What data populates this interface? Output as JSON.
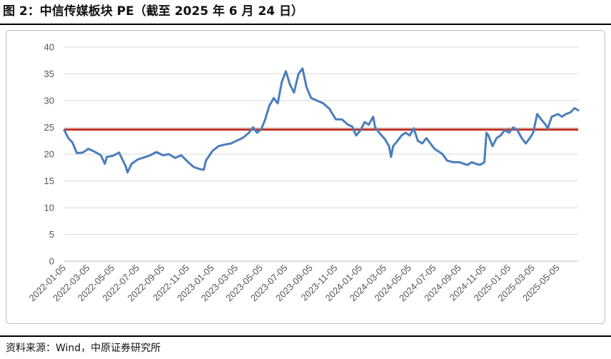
{
  "title": "图 2：中信传媒板块 PE（截至 2025 年 6 月 24 日）",
  "source": "资料来源：Wind，中原证券研究所",
  "colors": {
    "series": "#4a7ebb",
    "reference": "#c0392b",
    "grid": "#d9d9d9"
  },
  "chart_data": {
    "type": "line",
    "title": "",
    "xlabel": "",
    "ylabel": "",
    "ylim": [
      0,
      40
    ],
    "yticks": [
      0,
      5,
      10,
      15,
      20,
      25,
      30,
      35,
      40
    ],
    "xlim": [
      "2022-01-05",
      "2025-06-24"
    ],
    "xticks": [
      "2022-01-05",
      "2022-03-05",
      "2022-05-05",
      "2022-07-05",
      "2022-09-05",
      "2022-11-05",
      "2023-01-05",
      "2023-03-05",
      "2023-05-05",
      "2023-07-05",
      "2023-09-05",
      "2023-11-05",
      "2024-01-05",
      "2024-03-05",
      "2024-05-05",
      "2024-07-05",
      "2024-09-05",
      "2024-11-05",
      "2025-01-05",
      "2025-03-05",
      "2025-05-05"
    ],
    "grid": true,
    "legend": "none",
    "reference_line": {
      "value": 24.6
    },
    "series": [
      {
        "points": [
          [
            "2022-01-05",
            24.5
          ],
          [
            "2022-01-15",
            23.0
          ],
          [
            "2022-01-25",
            22.2
          ],
          [
            "2022-02-05",
            20.2
          ],
          [
            "2022-02-20",
            20.3
          ],
          [
            "2022-03-05",
            21.0
          ],
          [
            "2022-03-20",
            20.5
          ],
          [
            "2022-04-05",
            19.8
          ],
          [
            "2022-04-15",
            18.2
          ],
          [
            "2022-04-20",
            19.5
          ],
          [
            "2022-05-05",
            19.7
          ],
          [
            "2022-05-20",
            20.3
          ],
          [
            "2022-06-05",
            17.8
          ],
          [
            "2022-06-10",
            16.6
          ],
          [
            "2022-06-20",
            18.2
          ],
          [
            "2022-07-05",
            19.0
          ],
          [
            "2022-07-25",
            19.5
          ],
          [
            "2022-08-05",
            19.8
          ],
          [
            "2022-08-20",
            20.4
          ],
          [
            "2022-09-05",
            19.8
          ],
          [
            "2022-09-20",
            20.0
          ],
          [
            "2022-10-05",
            19.3
          ],
          [
            "2022-10-20",
            19.8
          ],
          [
            "2022-11-05",
            18.6
          ],
          [
            "2022-11-20",
            17.6
          ],
          [
            "2022-12-05",
            17.2
          ],
          [
            "2022-12-15",
            17.1
          ],
          [
            "2022-12-20",
            18.8
          ],
          [
            "2023-01-05",
            20.6
          ],
          [
            "2023-01-20",
            21.5
          ],
          [
            "2023-02-05",
            21.8
          ],
          [
            "2023-02-20",
            22.0
          ],
          [
            "2023-03-05",
            22.5
          ],
          [
            "2023-03-20",
            23.0
          ],
          [
            "2023-04-05",
            24.0
          ],
          [
            "2023-04-15",
            25.0
          ],
          [
            "2023-04-25",
            24.0
          ],
          [
            "2023-05-05",
            24.6
          ],
          [
            "2023-05-15",
            26.5
          ],
          [
            "2023-05-25",
            29.0
          ],
          [
            "2023-06-05",
            30.5
          ],
          [
            "2023-06-15",
            29.5
          ],
          [
            "2023-06-25",
            33.5
          ],
          [
            "2023-07-05",
            35.5
          ],
          [
            "2023-07-15",
            33.0
          ],
          [
            "2023-07-25",
            31.5
          ],
          [
            "2023-08-05",
            35.0
          ],
          [
            "2023-08-15",
            36.0
          ],
          [
            "2023-08-25",
            32.5
          ],
          [
            "2023-09-05",
            30.5
          ],
          [
            "2023-09-20",
            30.0
          ],
          [
            "2023-10-05",
            29.5
          ],
          [
            "2023-10-20",
            28.5
          ],
          [
            "2023-11-05",
            26.5
          ],
          [
            "2023-11-20",
            26.5
          ],
          [
            "2023-12-05",
            25.5
          ],
          [
            "2023-12-15",
            25.2
          ],
          [
            "2023-12-25",
            23.5
          ],
          [
            "2024-01-05",
            24.5
          ],
          [
            "2024-01-15",
            26.0
          ],
          [
            "2024-01-25",
            25.5
          ],
          [
            "2024-02-05",
            27.0
          ],
          [
            "2024-02-10",
            25.0
          ],
          [
            "2024-02-20",
            24.0
          ],
          [
            "2024-03-05",
            22.8
          ],
          [
            "2024-03-15",
            21.5
          ],
          [
            "2024-03-20",
            19.5
          ],
          [
            "2024-03-25",
            21.5
          ],
          [
            "2024-04-05",
            22.5
          ],
          [
            "2024-04-15",
            23.5
          ],
          [
            "2024-04-25",
            24.0
          ],
          [
            "2024-05-05",
            23.5
          ],
          [
            "2024-05-15",
            24.8
          ],
          [
            "2024-05-25",
            22.5
          ],
          [
            "2024-06-05",
            22.0
          ],
          [
            "2024-06-15",
            23.0
          ],
          [
            "2024-06-25",
            22.0
          ],
          [
            "2024-07-05",
            21.0
          ],
          [
            "2024-07-15",
            20.5
          ],
          [
            "2024-07-25",
            20.0
          ],
          [
            "2024-08-05",
            18.8
          ],
          [
            "2024-08-20",
            18.5
          ],
          [
            "2024-09-05",
            18.5
          ],
          [
            "2024-09-15",
            18.2
          ],
          [
            "2024-09-25",
            18.0
          ],
          [
            "2024-10-05",
            18.5
          ],
          [
            "2024-10-15",
            18.2
          ],
          [
            "2024-10-25",
            18.0
          ],
          [
            "2024-11-05",
            18.5
          ],
          [
            "2024-11-10",
            24.0
          ],
          [
            "2024-11-15",
            23.5
          ],
          [
            "2024-11-25",
            21.5
          ],
          [
            "2024-12-05",
            23.0
          ],
          [
            "2024-12-15",
            23.5
          ],
          [
            "2024-12-25",
            24.5
          ],
          [
            "2025-01-05",
            24.0
          ],
          [
            "2025-01-15",
            25.0
          ],
          [
            "2025-01-25",
            24.5
          ],
          [
            "2025-02-05",
            23.0
          ],
          [
            "2025-02-15",
            22.0
          ],
          [
            "2025-02-25",
            23.0
          ],
          [
            "2025-03-05",
            24.0
          ],
          [
            "2025-03-15",
            27.5
          ],
          [
            "2025-03-25",
            26.5
          ],
          [
            "2025-04-05",
            25.5
          ],
          [
            "2025-04-10",
            24.8
          ],
          [
            "2025-04-20",
            27.0
          ],
          [
            "2025-05-05",
            27.5
          ],
          [
            "2025-05-15",
            27.0
          ],
          [
            "2025-05-25",
            27.5
          ],
          [
            "2025-06-05",
            27.8
          ],
          [
            "2025-06-15",
            28.6
          ],
          [
            "2025-06-24",
            28.2
          ]
        ]
      }
    ]
  }
}
